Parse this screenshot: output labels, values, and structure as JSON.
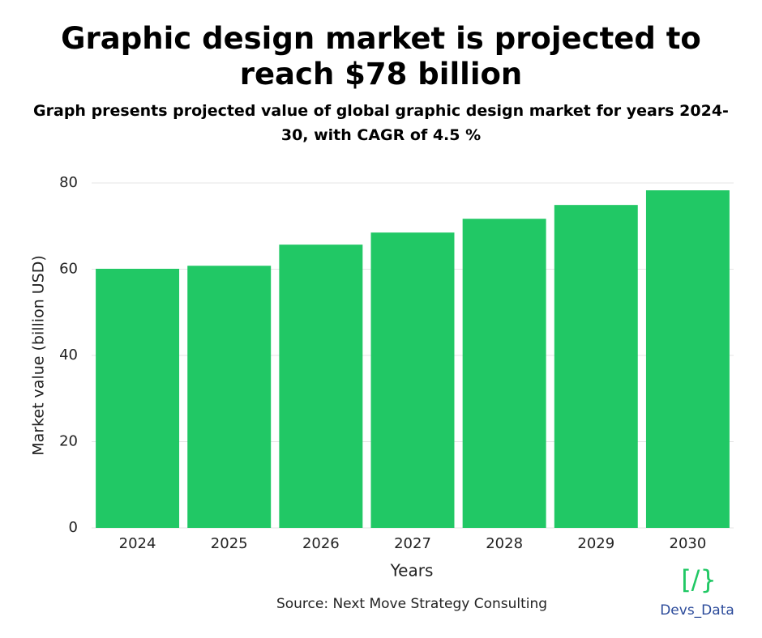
{
  "chart_data": {
    "type": "bar",
    "title": "Graphic design market is projected to reach $78 billion",
    "subtitle": "Graph presents projected value of global graphic design market for years 2024-30, with CAGR of 4.5 %",
    "xlabel": "Years",
    "ylabel": "Market value (billion USD)",
    "source": "Source: Next Move Strategy Consulting",
    "categories": [
      "2024",
      "2025",
      "2026",
      "2027",
      "2028",
      "2029",
      "2030"
    ],
    "values": [
      60.1,
      60.8,
      65.7,
      68.5,
      71.7,
      74.9,
      78.3
    ],
    "color": "#21c865",
    "ylim": [
      0,
      80
    ],
    "yticks": [
      0,
      20,
      40,
      60,
      80
    ],
    "grid": true
  },
  "logo": {
    "icon": "[/}",
    "text": "Devs_Data"
  }
}
